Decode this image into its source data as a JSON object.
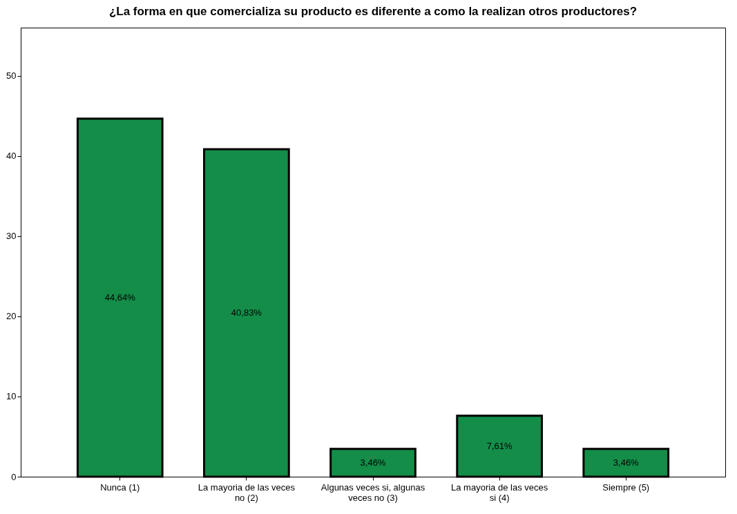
{
  "chart_data": {
    "type": "bar",
    "title": "¿La forma en que comercializa su producto es diferente a como la realizan otros productores?",
    "categories": [
      "Nunca (1)",
      "La mayoria de las veces no (2)",
      "Algunas veces si, algunas veces no (3)",
      "La mayoria de las veces si (4)",
      "Siempre (5)"
    ],
    "values": [
      44.64,
      40.83,
      3.46,
      7.61,
      3.46
    ],
    "value_labels": [
      "44,64%",
      "40,83%",
      "3,46%",
      "7,61%",
      "3,46%"
    ],
    "color": "#138d48",
    "ylim": [
      0,
      56
    ],
    "yticks": [
      0,
      10,
      20,
      30,
      40,
      50
    ],
    "grid": false
  }
}
